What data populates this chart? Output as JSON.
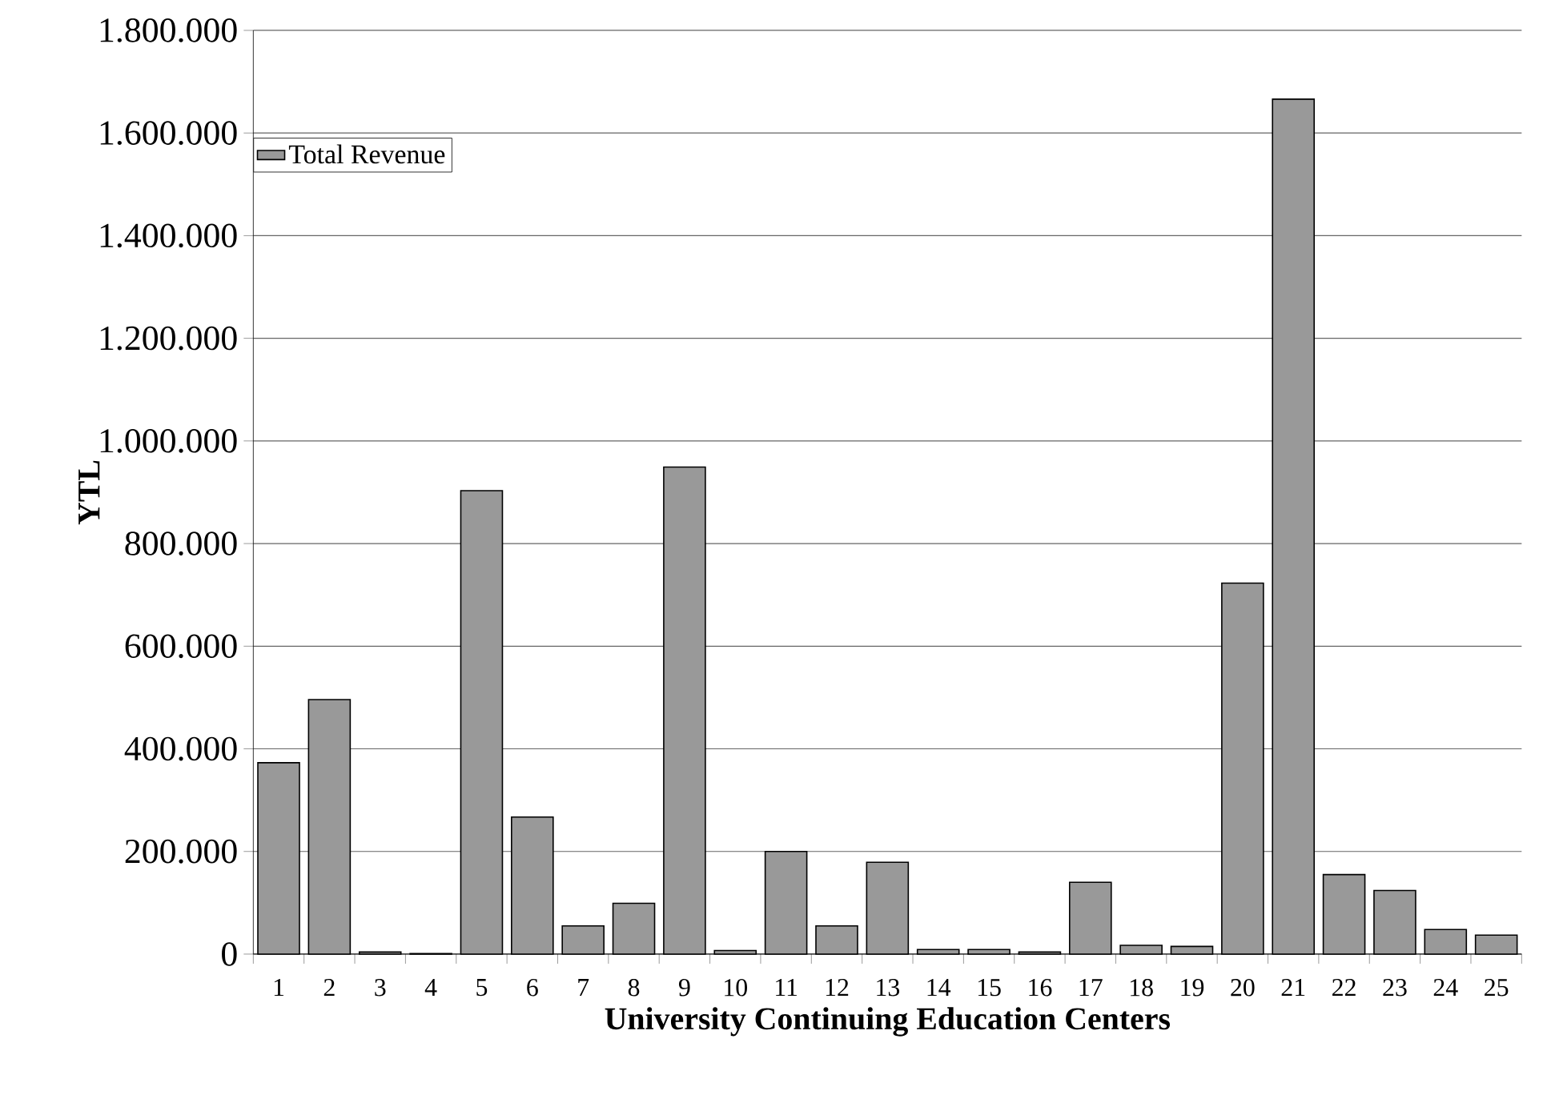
{
  "chart_data": {
    "type": "bar",
    "xlabel": "University Continuing Education Centers",
    "ylabel": "YTL",
    "categories": [
      "1",
      "2",
      "3",
      "4",
      "5",
      "6",
      "7",
      "8",
      "9",
      "10",
      "11",
      "12",
      "13",
      "14",
      "15",
      "16",
      "17",
      "18",
      "19",
      "20",
      "21",
      "22",
      "23",
      "24",
      "25"
    ],
    "series": [
      {
        "name": "Total Revenue",
        "color": "#999999",
        "values": [
          373000,
          496000,
          4000,
          1000,
          903000,
          267000,
          55000,
          99000,
          949000,
          7000,
          200000,
          55000,
          179000,
          9000,
          9000,
          4000,
          140000,
          17000,
          15000,
          723000,
          1666000,
          155000,
          124000,
          48000,
          37000
        ]
      }
    ],
    "ylim": [
      0,
      1800000
    ],
    "yticks": [
      0,
      {
        "value": 200000,
        "label": "200.000"
      },
      {
        "value": 400000,
        "label": "400.000"
      },
      {
        "value": 600000,
        "label": "600.000"
      },
      {
        "value": 800000,
        "label": "800.000"
      },
      {
        "value": 1000000,
        "label": "1.000.000"
      },
      {
        "value": 1200000,
        "label": "1.200.000"
      },
      {
        "value": 1400000,
        "label": "1.400.000"
      },
      {
        "value": 1600000,
        "label": "1.600.000"
      },
      {
        "value": 1800000,
        "label": "1.800.000"
      }
    ],
    "grid": "y",
    "legend": "top left"
  }
}
